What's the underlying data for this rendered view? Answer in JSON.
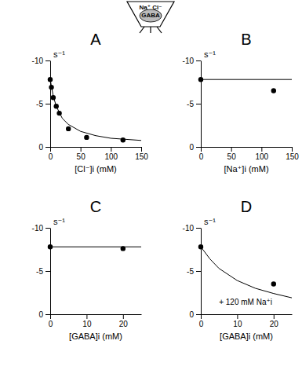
{
  "inset": {
    "labels": [
      "Na⁺ Cl⁻",
      "GABA"
    ]
  },
  "chart_data": [
    {
      "type": "scatter",
      "title": "A",
      "y_label": "s⁻¹",
      "x_label": "[Cl⁻]i (mM)",
      "xlim": [
        0,
        150
      ],
      "xticks": [
        0,
        50,
        100,
        150
      ],
      "ylim": [
        0,
        -10
      ],
      "yticks": [
        -10,
        -5,
        0
      ],
      "series": [
        {
          "type": "scatter",
          "marker": "circle",
          "color": "#000000",
          "x": [
            0,
            2,
            5,
            10,
            15,
            30,
            60,
            120
          ],
          "values": [
            -7.8,
            -6.9,
            -5.7,
            -4.7,
            -3.9,
            -2.1,
            -1.1,
            -0.8
          ]
        },
        {
          "type": "line",
          "line_style": "solid",
          "color": "#000000",
          "x": [
            0,
            5,
            10,
            20,
            30,
            50,
            75,
            100,
            150
          ],
          "values": [
            -7.8,
            -5.9,
            -4.7,
            -3.3,
            -2.6,
            -1.8,
            -1.3,
            -1.0,
            -0.75
          ]
        }
      ]
    },
    {
      "type": "scatter",
      "title": "B",
      "y_label": "s⁻¹",
      "x_label": "[Na⁺]i (mM)",
      "xlim": [
        0,
        150
      ],
      "xticks": [
        0,
        50,
        100,
        150
      ],
      "ylim": [
        0,
        -10
      ],
      "yticks": [
        -10,
        -5,
        0
      ],
      "series": [
        {
          "type": "scatter",
          "marker": "circle",
          "color": "#000000",
          "x": [
            0,
            120
          ],
          "values": [
            -7.8,
            -6.5
          ]
        },
        {
          "type": "line",
          "line_style": "solid",
          "color": "#000000",
          "x": [
            0,
            150
          ],
          "values": [
            -7.8,
            -7.8
          ]
        }
      ]
    },
    {
      "type": "scatter",
      "title": "C",
      "y_label": "s⁻¹",
      "x_label": "[GABA]i (mM)",
      "xlim": [
        0,
        25
      ],
      "xticks": [
        0,
        10,
        20
      ],
      "ylim": [
        0,
        -10
      ],
      "yticks": [
        -10,
        -5,
        0
      ],
      "series": [
        {
          "type": "scatter",
          "marker": "circle",
          "color": "#000000",
          "x": [
            0,
            20
          ],
          "values": [
            -7.8,
            -7.6
          ]
        },
        {
          "type": "line",
          "line_style": "solid",
          "color": "#000000",
          "x": [
            0,
            25
          ],
          "values": [
            -7.8,
            -7.8
          ]
        }
      ]
    },
    {
      "type": "scatter",
      "title": "D",
      "y_label": "s⁻¹",
      "x_label": "[GABA]i (mM)",
      "annotation": "+ 120 mM Na⁺i",
      "xlim": [
        0,
        25
      ],
      "xticks": [
        0,
        10,
        20
      ],
      "ylim": [
        0,
        -10
      ],
      "yticks": [
        -10,
        -5,
        0
      ],
      "series": [
        {
          "type": "scatter",
          "marker": "circle",
          "color": "#000000",
          "x": [
            0,
            20
          ],
          "values": [
            -7.8,
            -3.5
          ]
        },
        {
          "type": "line",
          "line_style": "solid",
          "color": "#000000",
          "x": [
            0,
            2.5,
            5,
            10,
            15,
            20,
            25
          ],
          "values": [
            -7.8,
            -6.4,
            -5.3,
            -3.9,
            -3.0,
            -2.4,
            -1.9
          ]
        }
      ]
    }
  ]
}
